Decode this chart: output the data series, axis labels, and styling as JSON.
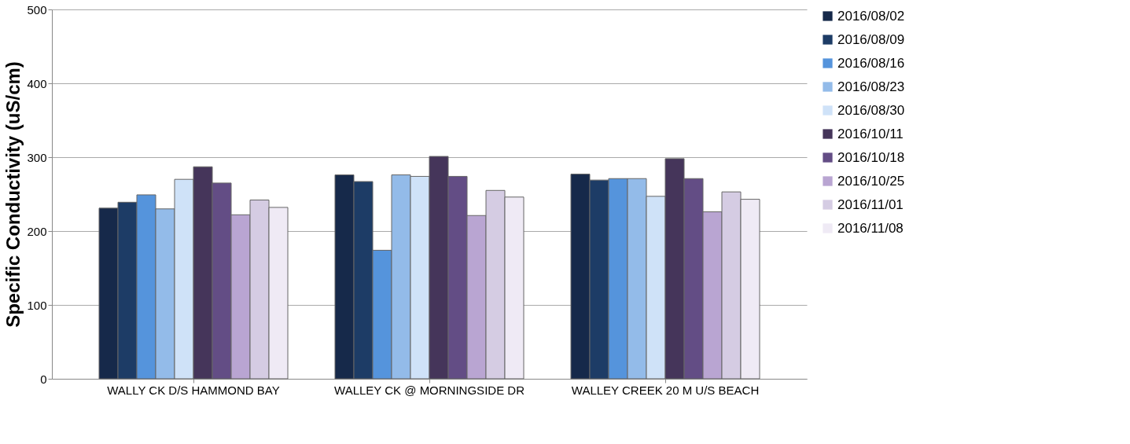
{
  "chart_data": {
    "type": "bar",
    "ylabel": "Specific Conductivity (uS/cm)",
    "categories": [
      "WALLY CK D/S HAMMOND BAY",
      "WALLEY CK @ MORNINGSIDE DR",
      "WALLEY CREEK 20 M U/S BEACH"
    ],
    "series": [
      {
        "name": "2016/08/02",
        "color": "#16294a",
        "values": [
          231,
          276,
          277
        ]
      },
      {
        "name": "2016/08/09",
        "color": "#1d3c66",
        "values": [
          239,
          267,
          269
        ]
      },
      {
        "name": "2016/08/16",
        "color": "#5594dc",
        "values": [
          249,
          174,
          271
        ]
      },
      {
        "name": "2016/08/23",
        "color": "#93bbe9",
        "values": [
          230,
          276,
          271
        ]
      },
      {
        "name": "2016/08/30",
        "color": "#cfe2f8",
        "values": [
          270,
          274,
          247
        ]
      },
      {
        "name": "2016/10/11",
        "color": "#45355a",
        "values": [
          287,
          301,
          298
        ]
      },
      {
        "name": "2016/10/18",
        "color": "#634d85",
        "values": [
          265,
          274,
          271
        ]
      },
      {
        "name": "2016/10/25",
        "color": "#b9a5d2",
        "values": [
          222,
          221,
          226
        ]
      },
      {
        "name": "2016/11/01",
        "color": "#d5cce3",
        "values": [
          242,
          255,
          253
        ]
      },
      {
        "name": "2016/11/08",
        "color": "#efeaf5",
        "values": [
          232,
          246,
          243
        ]
      }
    ],
    "ylim": [
      0,
      500
    ],
    "yticks": [
      0,
      100,
      200,
      300,
      400,
      500
    ],
    "grid": "y",
    "legend": "right"
  }
}
